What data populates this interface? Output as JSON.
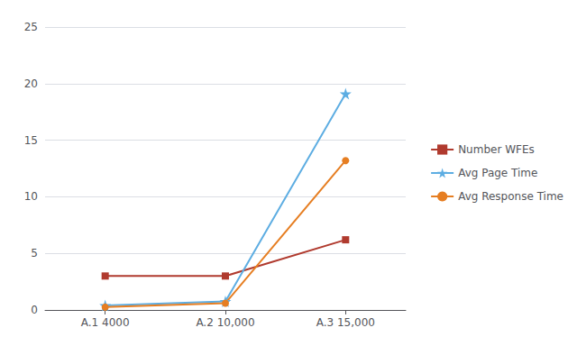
{
  "chart_data": {
    "type": "line",
    "categories": [
      "A.1 4000",
      "A.2 10,000",
      "A.3 15,000"
    ],
    "series": [
      {
        "name": "Number WFEs",
        "color": "#B03A2E",
        "marker": "square",
        "values": [
          3.0,
          3.0,
          6.2
        ]
      },
      {
        "name": "Avg Page Time",
        "color": "#5DADE2",
        "marker": "star",
        "values": [
          0.4,
          0.75,
          19.1
        ]
      },
      {
        "name": "Avg Response Time",
        "color": "#E67E22",
        "marker": "circle",
        "values": [
          0.25,
          0.6,
          13.2
        ]
      }
    ],
    "ylim": [
      0,
      25
    ],
    "yticks": [
      0,
      5,
      10,
      15,
      20,
      25
    ],
    "grid": true,
    "legend": "right"
  }
}
